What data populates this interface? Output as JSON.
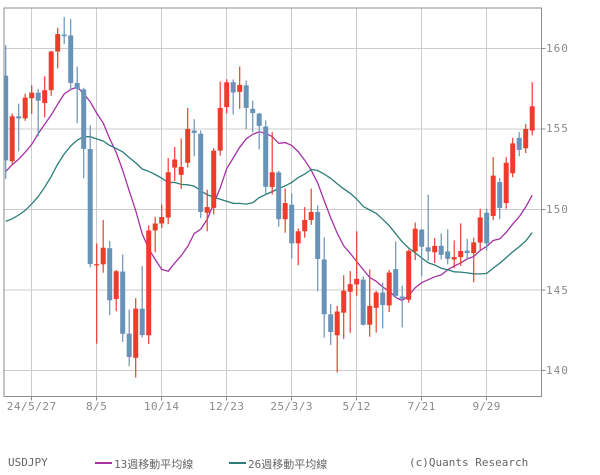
{
  "footer": {
    "symbol": "USDJPY",
    "copyright": "(c)Quants Research"
  },
  "chart_data": {
    "type": "candlestick",
    "title": "USDJPY weekly candlestick chart with moving averages",
    "symbol": "USDJPY",
    "timeframe": "weekly",
    "legend_position": "bottom",
    "grid": true,
    "y_ticks": [
      160,
      155,
      150,
      145,
      140
    ],
    "ylim": [
      138.4,
      162.5
    ],
    "x_tick_labels": [
      "24/5/27",
      "8/5",
      "10/14",
      "12/23",
      "25/3/3",
      "5/12",
      "7/21",
      "9/29"
    ],
    "x_tick_candle_indices": [
      4,
      14,
      24,
      34,
      44,
      54,
      64,
      74
    ],
    "candles_ohlc": [
      [
        158.3,
        160.2,
        151.9,
        153.05
      ],
      [
        153.0,
        155.95,
        152.8,
        155.78
      ],
      [
        155.78,
        156.56,
        153.6,
        155.65
      ],
      [
        155.65,
        157.19,
        155.5,
        156.94
      ],
      [
        156.9,
        157.71,
        155.93,
        157.25
      ],
      [
        157.25,
        157.49,
        154.53,
        156.75
      ],
      [
        156.6,
        158.26,
        155.72,
        157.4
      ],
      [
        157.4,
        159.84,
        157.05,
        159.8
      ],
      [
        159.8,
        161.28,
        158.75,
        160.88
      ],
      [
        160.85,
        161.95,
        160.26,
        160.75
      ],
      [
        160.8,
        161.81,
        157.38,
        157.85
      ],
      [
        157.85,
        158.86,
        155.36,
        157.48
      ],
      [
        157.45,
        157.55,
        151.94,
        153.76
      ],
      [
        153.75,
        155.22,
        146.42,
        146.62
      ],
      [
        146.56,
        147.9,
        141.68,
        146.61
      ],
      [
        146.6,
        149.35,
        146.08,
        147.63
      ],
      [
        147.6,
        148.05,
        143.45,
        144.37
      ],
      [
        144.45,
        146.25,
        143.69,
        146.17
      ],
      [
        146.15,
        147.21,
        141.78,
        142.29
      ],
      [
        142.3,
        143.8,
        140.28,
        140.85
      ],
      [
        140.8,
        144.5,
        139.58,
        143.85
      ],
      [
        143.85,
        146.49,
        142.06,
        142.21
      ],
      [
        142.2,
        149.02,
        141.65,
        148.7
      ],
      [
        148.7,
        149.55,
        147.35,
        149.13
      ],
      [
        149.13,
        150.32,
        148.86,
        149.53
      ],
      [
        149.5,
        153.19,
        149.09,
        152.31
      ],
      [
        152.6,
        153.88,
        151.77,
        153.1
      ],
      [
        152.15,
        154.4,
        151.28,
        152.64
      ],
      [
        152.9,
        156.3,
        152.6,
        155.0
      ],
      [
        154.9,
        155.6,
        153.3,
        154.75
      ],
      [
        154.7,
        154.9,
        149.47,
        149.85
      ],
      [
        149.8,
        151.23,
        148.65,
        150.15
      ],
      [
        150.1,
        153.8,
        149.69,
        153.65
      ],
      [
        153.65,
        157.93,
        153.34,
        156.3
      ],
      [
        156.35,
        158.08,
        155.96,
        157.89
      ],
      [
        157.9,
        158.07,
        155.89,
        157.26
      ],
      [
        157.3,
        158.87,
        156.24,
        157.73
      ],
      [
        157.7,
        158.0,
        154.98,
        156.3
      ],
      [
        156.25,
        156.75,
        154.78,
        155.98
      ],
      [
        155.95,
        155.99,
        153.72,
        155.19
      ],
      [
        155.15,
        155.53,
        150.93,
        151.41
      ],
      [
        151.4,
        154.8,
        150.93,
        152.31
      ],
      [
        152.3,
        152.4,
        148.93,
        149.4
      ],
      [
        149.4,
        151.3,
        148.56,
        150.4
      ],
      [
        150.3,
        151.0,
        146.94,
        147.9
      ],
      [
        147.9,
        148.83,
        146.54,
        148.65
      ],
      [
        148.65,
        150.15,
        148.25,
        149.35
      ],
      [
        149.35,
        151.3,
        149.05,
        149.85
      ],
      [
        149.85,
        150.25,
        144.93,
        146.93
      ],
      [
        146.9,
        148.28,
        142.05,
        143.5
      ],
      [
        143.5,
        144.15,
        141.6,
        142.4
      ],
      [
        142.2,
        144.03,
        139.89,
        143.67
      ],
      [
        143.6,
        145.92,
        141.97,
        144.96
      ],
      [
        144.9,
        146.18,
        142.35,
        145.37
      ],
      [
        145.35,
        148.65,
        144.65,
        145.7
      ],
      [
        145.65,
        145.85,
        142.8,
        142.85
      ],
      [
        142.85,
        146.28,
        142.11,
        144.02
      ],
      [
        143.9,
        144.95,
        142.37,
        144.85
      ],
      [
        144.85,
        145.46,
        142.62,
        144.07
      ],
      [
        144.05,
        146.25,
        143.64,
        146.09
      ],
      [
        146.3,
        148.02,
        144.51,
        144.64
      ],
      [
        144.6,
        145.27,
        142.68,
        144.47
      ],
      [
        144.4,
        147.52,
        144.22,
        147.43
      ],
      [
        147.4,
        149.19,
        146.86,
        148.81
      ],
      [
        148.75,
        148.8,
        145.86,
        147.69
      ],
      [
        147.65,
        150.92,
        146.81,
        147.4
      ],
      [
        147.35,
        148.23,
        146.68,
        147.74
      ],
      [
        147.75,
        148.52,
        146.9,
        147.19
      ],
      [
        147.4,
        148.77,
        146.59,
        146.94
      ],
      [
        146.9,
        148.08,
        146.36,
        147.05
      ],
      [
        147.05,
        149.14,
        146.51,
        147.43
      ],
      [
        147.45,
        148.18,
        146.93,
        147.3
      ],
      [
        147.3,
        148.25,
        145.49,
        147.96
      ],
      [
        147.95,
        150.04,
        147.5,
        149.51
      ],
      [
        149.8,
        150.05,
        147.45,
        147.9
      ],
      [
        149.6,
        153.25,
        149.35,
        152.1
      ],
      [
        151.7,
        151.95,
        149.4,
        150.1
      ],
      [
        150.4,
        153.25,
        150.05,
        152.9
      ],
      [
        152.25,
        154.45,
        152.0,
        154.1
      ],
      [
        154.45,
        154.8,
        153.3,
        153.7
      ],
      [
        153.8,
        155.3,
        153.5,
        155.0
      ],
      [
        154.9,
        157.9,
        154.6,
        156.4
      ]
    ],
    "ma_warmup_closes": [
      151.5,
      149.6,
      149.4,
      146.8,
      145.0,
      142.2,
      142.4,
      141.0,
      144.6,
      144.9,
      148.1,
      148.1,
      146.6,
      150.2,
      151.1,
      151.4,
      151.0,
      148.0,
      149.9,
      152.3,
      152.2,
      152.5,
      154.2,
      155.5,
      159.2
    ],
    "overlays": [
      {
        "name": "13週移動平均線",
        "window": 13,
        "color": "#a531a5"
      },
      {
        "name": "26週移動平均線",
        "window": 26,
        "color": "#2c7d79"
      }
    ],
    "colors": {
      "up": "#ee3b2c",
      "down": "#6893b8",
      "grid": "#cccccc",
      "axis": "#8e8e8e",
      "tick_text": "#8a8a8a",
      "legend_text": "#656565"
    }
  }
}
